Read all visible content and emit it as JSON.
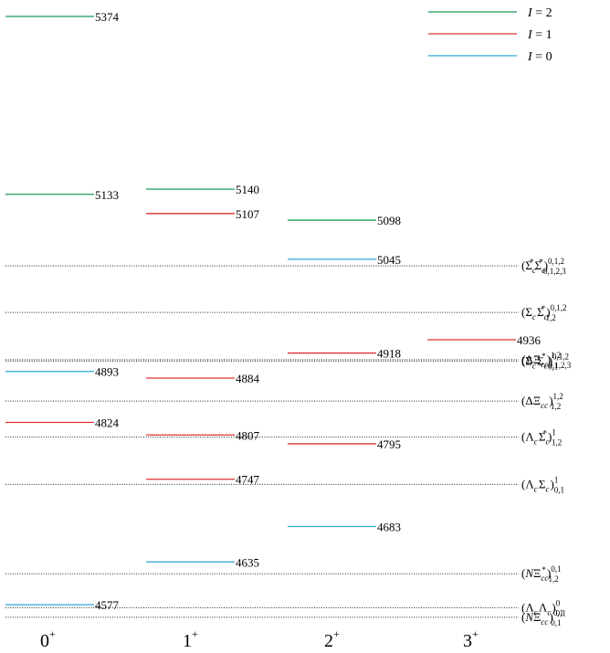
{
  "chart_data": {
    "type": "level-scheme",
    "categories": [
      {
        "base": "0",
        "sup": "+"
      },
      {
        "base": "1",
        "sup": "+"
      },
      {
        "base": "2",
        "sup": "+"
      },
      {
        "base": "3",
        "sup": "+"
      }
    ],
    "y_range": [
      4545,
      5374
    ],
    "isospin_colors": {
      "2": "#1a9a5a",
      "1": "#dd3333",
      "0": "#2aa8d8"
    },
    "legend": [
      {
        "isospin": "2",
        "label": "I = 2",
        "color": "#1a9a5a"
      },
      {
        "isospin": "1",
        "label": "I = 1",
        "color": "#dd3333"
      },
      {
        "isospin": "0",
        "label": "I = 0",
        "color": "#2aa8d8"
      }
    ],
    "levels": [
      {
        "jp": "0+",
        "value": 5374,
        "isospin": 2,
        "label": "5374"
      },
      {
        "jp": "0+",
        "value": 5133,
        "isospin": 2,
        "label": "5133"
      },
      {
        "jp": "0+",
        "value": 4893,
        "isospin": 0,
        "label": "4893"
      },
      {
        "jp": "0+",
        "value": 4824,
        "isospin": 1,
        "label": "4824"
      },
      {
        "jp": "0+",
        "value": 4577,
        "isospin": 0,
        "label": "4577"
      },
      {
        "jp": "1+",
        "value": 5140,
        "isospin": 2,
        "label": "5140"
      },
      {
        "jp": "1+",
        "value": 5107,
        "isospin": 1,
        "label": "5107"
      },
      {
        "jp": "1+",
        "value": 4884,
        "isospin": 1,
        "label": "4884"
      },
      {
        "jp": "1+",
        "value": 4807,
        "isospin": 1,
        "label": "4807"
      },
      {
        "jp": "1+",
        "value": 4747,
        "isospin": 1,
        "label": "4747"
      },
      {
        "jp": "1+",
        "value": 4635,
        "isospin": 0,
        "label": "4635"
      },
      {
        "jp": "2+",
        "value": 5098,
        "isospin": 2,
        "label": "5098"
      },
      {
        "jp": "2+",
        "value": 5045,
        "isospin": 0,
        "label": "5045"
      },
      {
        "jp": "2+",
        "value": 4918,
        "isospin": 1,
        "label": "4918"
      },
      {
        "jp": "2+",
        "value": 4795,
        "isospin": 1,
        "label": "4795"
      },
      {
        "jp": "2+",
        "value": 4683,
        "isospin": 0,
        "label": "4683"
      },
      {
        "jp": "3+",
        "value": 4936,
        "isospin": 1,
        "label": "4936"
      }
    ],
    "thresholds": [
      {
        "value": 5036,
        "name": "Σc*Σc*",
        "main": "(Σ",
        "parts": [
          [
            "Σ",
            "c*"
          ],
          [
            "Σ",
            "c*"
          ]
        ],
        "sup": "0,1,2",
        "sub": "0,1,2,3"
      },
      {
        "value": 4973,
        "name": "ΣcΣc*",
        "parts": [
          [
            "Σ",
            "c"
          ],
          [
            "Σ",
            "c*"
          ]
        ],
        "sup": "0,1,2",
        "sub": "1,2"
      },
      {
        "value": 4909,
        "name": "ΔΞcc*",
        "parts": [
          [
            "Δ",
            ""
          ],
          [
            "Ξ",
            "cc*"
          ]
        ],
        "sup": "1,2",
        "sub": "0,1,2,3"
      },
      {
        "value": 4907,
        "name": "ΣcΣc",
        "parts": [
          [
            "Σ",
            "c"
          ],
          [
            "Σ",
            "c"
          ]
        ],
        "sup": "0,1,2",
        "sub": "0,1"
      },
      {
        "value": 4853,
        "name": "ΔΞcc",
        "parts": [
          [
            "Δ",
            ""
          ],
          [
            "Ξ",
            "cc"
          ]
        ],
        "sup": "1,2",
        "sub": "1,2"
      },
      {
        "value": 4804,
        "name": "ΛcΣc*",
        "parts": [
          [
            "Λ",
            "c"
          ],
          [
            "Σ",
            "c*"
          ]
        ],
        "sup": "1",
        "sub": "1,2"
      },
      {
        "value": 4740,
        "name": "ΛcΣc",
        "parts": [
          [
            "Λ",
            "c"
          ],
          [
            "Σ",
            "c"
          ]
        ],
        "sup": "1",
        "sub": "0,1"
      },
      {
        "value": 4619,
        "name": "NΞcc*",
        "parts": [
          [
            "N",
            ""
          ],
          [
            "Ξ",
            "cc*"
          ]
        ],
        "sup": "0,1",
        "sub": "1,2"
      },
      {
        "value": 4573,
        "name": "ΛcΛc",
        "parts": [
          [
            "Λ",
            "c"
          ],
          [
            "Λ",
            "c"
          ]
        ],
        "sup": "0",
        "sub": "0,1"
      },
      {
        "value": 4560,
        "name": "NΞcc",
        "parts": [
          [
            "N",
            ""
          ],
          [
            "Ξ",
            "cc"
          ]
        ],
        "sup": "0,1",
        "sub": "0,1"
      }
    ]
  }
}
